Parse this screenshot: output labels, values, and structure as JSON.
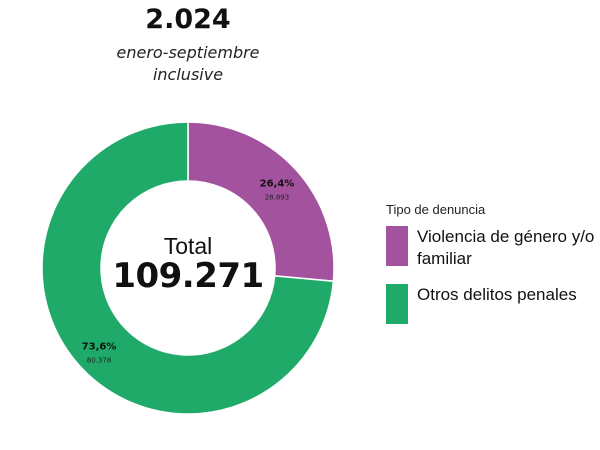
{
  "header": {
    "year": "2.024",
    "subtitle_line1": "enero-septiembre",
    "subtitle_line2": "inclusive"
  },
  "center": {
    "label": "Total",
    "value": "109.271"
  },
  "legend": {
    "title": "Tipo de denuncia",
    "items": [
      {
        "label": "Violencia de género y/o familiar",
        "color": "#a3529d"
      },
      {
        "label": "Otros delitos penales",
        "color": "#1faa69"
      }
    ]
  },
  "chart_data": {
    "type": "pie",
    "donut": true,
    "categories": [
      "Violencia de género y/o familiar",
      "Otros delitos penales"
    ],
    "values": [
      28893,
      80378
    ],
    "percent_labels": [
      "26,4%",
      "73,6%"
    ],
    "value_labels": [
      "28.893",
      "80.378"
    ],
    "colors": [
      "#a3529d",
      "#1faa69"
    ],
    "total": 109271,
    "legend_position": "right",
    "legend_title": "Tipo de denuncia"
  }
}
